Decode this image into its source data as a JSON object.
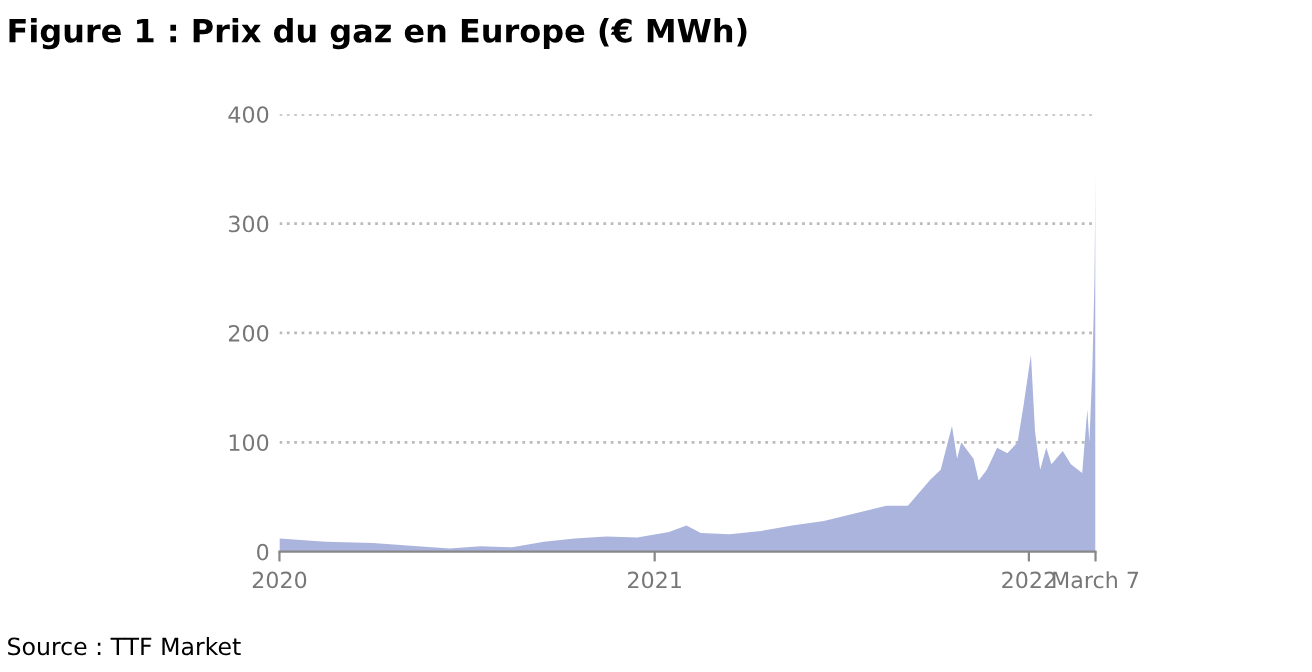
{
  "chart_data": {
    "type": "area",
    "title": "Figure 1 : Prix du gaz en Europe (€ MWh)",
    "annotations": [
      "Source : TTF Market"
    ],
    "x": [
      "2020-01-01",
      "2020-02-15",
      "2020-04-01",
      "2020-05-15",
      "2020-06-15",
      "2020-07-15",
      "2020-08-15",
      "2020-09-15",
      "2020-10-15",
      "2020-11-15",
      "2020-12-15",
      "2021-01-15",
      "2021-02-01",
      "2021-02-15",
      "2021-03-15",
      "2021-04-15",
      "2021-05-15",
      "2021-06-15",
      "2021-07-15",
      "2021-08-15",
      "2021-09-05",
      "2021-09-27",
      "2021-10-07",
      "2021-10-18",
      "2021-10-23",
      "2021-10-27",
      "2021-11-08",
      "2021-11-13",
      "2021-11-21",
      "2021-12-01",
      "2021-12-11",
      "2021-12-21",
      "2021-12-27",
      "2022-01-03",
      "2022-01-07",
      "2022-01-12",
      "2022-01-18",
      "2022-01-23",
      "2022-02-03",
      "2022-02-11",
      "2022-02-22",
      "2022-02-27",
      "2022-03-01",
      "2022-03-04",
      "2022-03-06",
      "2022-03-07"
    ],
    "series": [
      {
        "color": "#aab4dc",
        "values": [
          12,
          9,
          8,
          5,
          3,
          5,
          4,
          9,
          12,
          14,
          13,
          18,
          24,
          17,
          16,
          19,
          24,
          28,
          35,
          42,
          42,
          66,
          75,
          115,
          85,
          100,
          85,
          65,
          75,
          95,
          90,
          100,
          135,
          180,
          110,
          75,
          95,
          80,
          92,
          80,
          72,
          130,
          100,
          170,
          250,
          345
        ]
      }
    ],
    "xlim": [
      "2020-01-01",
      "2022-03-07"
    ],
    "xticks": [
      "2020",
      "2021",
      "2022",
      {
        "value": "2022-03-07",
        "label": "March 7"
      }
    ],
    "ylim": [
      0,
      400
    ],
    "yticks": [
      0,
      100,
      200,
      300,
      400
    ],
    "grid": "y"
  }
}
